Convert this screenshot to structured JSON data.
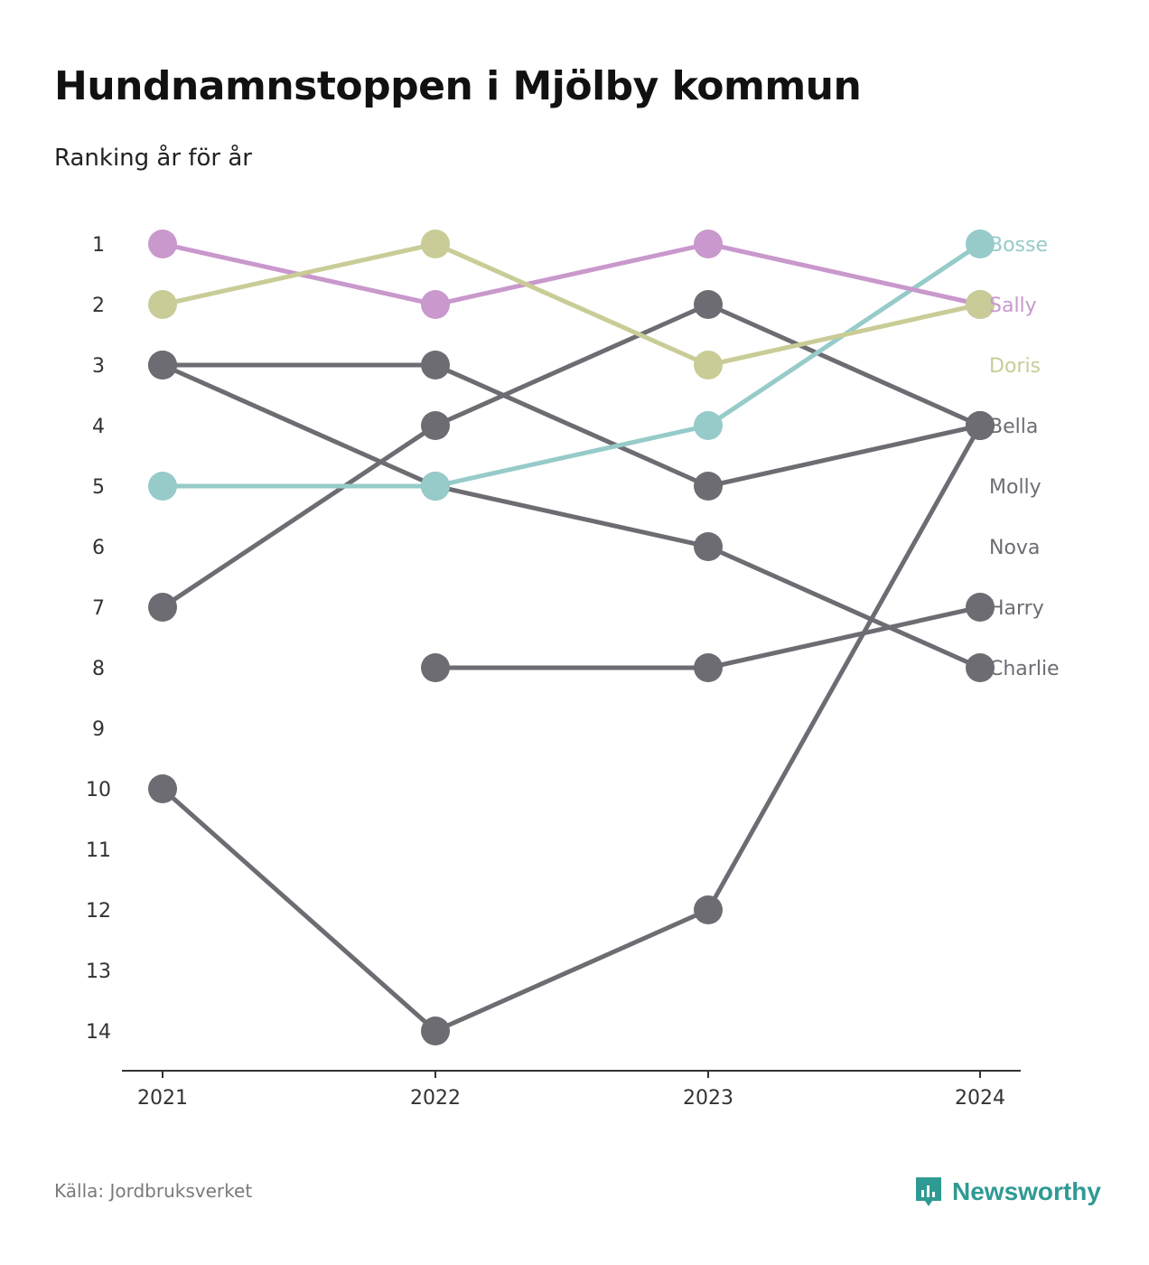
{
  "header": {
    "title": "Hundnamnstoppen i Mjölby kommun",
    "subtitle": "Ranking år för år"
  },
  "footer": {
    "source": "Källa: Jordbruksverket",
    "brand": "Newsworthy",
    "brand_icon": "newsworthy-logo-icon"
  },
  "colors": {
    "pink": "#c998cc",
    "olive": "#c9cc96",
    "teal": "#96cbc9",
    "grey": "#6d6c73",
    "brand": "#2f9a93"
  },
  "chart_data": {
    "type": "line",
    "x": [
      "2021",
      "2022",
      "2023",
      "2024"
    ],
    "y_ticks": [
      "1",
      "2",
      "3",
      "4",
      "5",
      "6",
      "7",
      "8",
      "9",
      "10",
      "11",
      "12",
      "13",
      "14"
    ],
    "ylim": [
      1,
      14
    ],
    "y_reversed": true,
    "grid": false,
    "series": [
      {
        "name": "Bosse",
        "color": "#96cbc9",
        "values": [
          5,
          5,
          4,
          1
        ]
      },
      {
        "name": "Sally",
        "color": "#c998cc",
        "values": [
          1,
          2,
          1,
          2
        ]
      },
      {
        "name": "Doris",
        "color": "#c9cc96",
        "values": [
          2,
          1,
          3,
          2
        ]
      },
      {
        "name": "Bella",
        "color": "#6d6c73",
        "values": [
          10,
          14,
          12,
          4
        ]
      },
      {
        "name": "Molly",
        "color": "#6d6c73",
        "values": [
          7,
          4,
          2,
          4
        ]
      },
      {
        "name": "Nova",
        "color": "#6d6c73",
        "values": [
          3,
          3,
          5,
          4
        ]
      },
      {
        "name": "Harry",
        "color": "#6d6c73",
        "values": [
          null,
          8,
          8,
          7
        ]
      },
      {
        "name": "Charlie",
        "color": "#6d6c73",
        "values": [
          3,
          5,
          6,
          8
        ]
      }
    ]
  }
}
